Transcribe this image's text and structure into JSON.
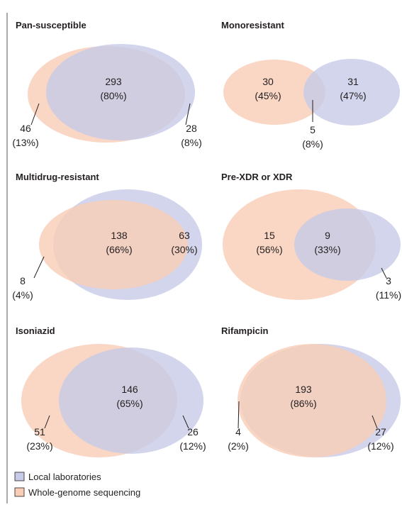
{
  "panels": [
    {
      "title": "Pan-susceptible",
      "regions": [
        {
          "count": 293,
          "percent": "(80%)"
        },
        {
          "count": 46,
          "percent": "(13%)"
        },
        {
          "count": 28,
          "percent": "(8%)"
        }
      ]
    },
    {
      "title": "Monoresistant",
      "regions": [
        {
          "count": 30,
          "percent": "(45%)"
        },
        {
          "count": 31,
          "percent": "(47%)"
        },
        {
          "count": 5,
          "percent": "(8%)"
        }
      ]
    },
    {
      "title": "Multidrug-resistant",
      "regions": [
        {
          "count": 138,
          "percent": "(66%)"
        },
        {
          "count": 63,
          "percent": "(30%)"
        },
        {
          "count": 8,
          "percent": "(4%)"
        }
      ]
    },
    {
      "title": "Pre-XDR or XDR",
      "regions": [
        {
          "count": 15,
          "percent": "(56%)"
        },
        {
          "count": 9,
          "percent": "(33%)"
        },
        {
          "count": 3,
          "percent": "(11%)"
        }
      ]
    },
    {
      "title": "Isoniazid",
      "regions": [
        {
          "count": 146,
          "percent": "(65%)"
        },
        {
          "count": 51,
          "percent": "(23%)"
        },
        {
          "count": 26,
          "percent": "(12%)"
        }
      ]
    },
    {
      "title": "Rifampicin",
      "regions": [
        {
          "count": 193,
          "percent": "(86%)"
        },
        {
          "count": 4,
          "percent": "(2%)"
        },
        {
          "count": 27,
          "percent": "(12%)"
        }
      ]
    }
  ],
  "legend": [
    "Local laboratories",
    "Whole-genome sequencing"
  ]
}
